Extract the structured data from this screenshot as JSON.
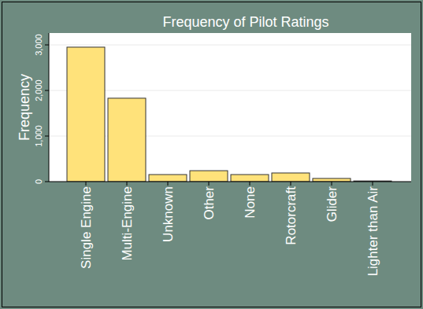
{
  "chart_data": {
    "type": "bar",
    "title": "Frequency of Pilot Ratings",
    "y_label": "Frequency",
    "categories": [
      "Single Engine",
      "Multi-Engine",
      "Unknown",
      "Other",
      "None",
      "Rotorcraft",
      "Glider",
      "Lighter than Air"
    ],
    "values": [
      2950,
      1830,
      155,
      240,
      155,
      190,
      70,
      15
    ],
    "color": "#ffe27a",
    "ylim": [
      0,
      3260
    ],
    "yticks": [
      0,
      {
        "value": 1000,
        "label": "1,000"
      },
      {
        "value": 2000,
        "label": "2,000"
      },
      {
        "value": 3000,
        "label": "3,000"
      }
    ],
    "grid": true
  }
}
